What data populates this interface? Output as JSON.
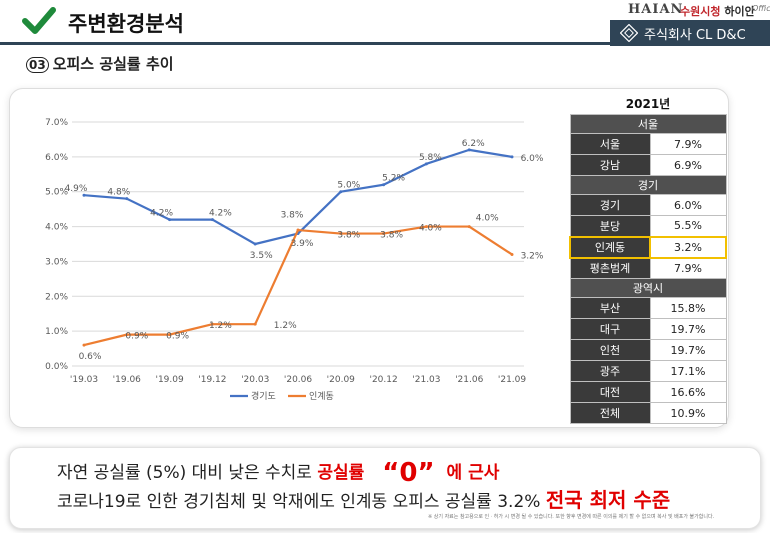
{
  "header": {
    "title": "주변환경분석",
    "brand_logo": "HAIAN",
    "brand_prefix": "수원시청",
    "brand_name": "하이안",
    "brand_office": "Office",
    "company": "주식회사 CL D&C"
  },
  "section": {
    "number": "03",
    "title": "오피스 공실률 추이"
  },
  "chart_data": {
    "type": "line",
    "categories": [
      "'19.03",
      "'19.06",
      "'19.09",
      "'19.12",
      "'20.03",
      "'20.06",
      "'20.09",
      "'20.12",
      "'21.03",
      "'21.06",
      "'21.09"
    ],
    "series": [
      {
        "name": "경기도",
        "color": "#4472c4",
        "values": [
          4.9,
          4.8,
          4.2,
          4.2,
          3.5,
          3.8,
          5.0,
          5.2,
          5.8,
          6.2,
          6.0
        ],
        "labels": [
          "4.9%",
          "4.8%",
          "4.2%",
          "4.2%",
          "3.5%",
          "3.8%",
          "5.0%",
          "5.2%",
          "5.8%",
          "6.2%",
          "6.0%"
        ]
      },
      {
        "name": "인계동",
        "color": "#ed7d31",
        "values": [
          0.6,
          0.9,
          0.9,
          1.2,
          1.2,
          3.9,
          3.8,
          3.8,
          4.0,
          4.0,
          3.2
        ],
        "labels": [
          "0.6%",
          "0.9%",
          "0.9%",
          "1.2%",
          "1.2%",
          "3.9%",
          "3.8%",
          "3.8%",
          "4.0%",
          "4.0%",
          "3.2%"
        ]
      }
    ],
    "yticks": [
      "0.0%",
      "1.0%",
      "2.0%",
      "3.0%",
      "4.0%",
      "5.0%",
      "6.0%",
      "7.0%"
    ],
    "ylim": [
      0,
      7
    ],
    "grid": true,
    "legend_position": "bottom"
  },
  "table": {
    "year": "2021년",
    "groups": [
      {
        "name": "서울",
        "rows": [
          {
            "city": "서울",
            "value": "7.9%"
          },
          {
            "city": "강남",
            "value": "6.9%"
          }
        ]
      },
      {
        "name": "경기",
        "rows": [
          {
            "city": "경기",
            "value": "6.0%"
          },
          {
            "city": "분당",
            "value": "5.5%"
          },
          {
            "city": "인계동",
            "value": "3.2%"
          },
          {
            "city": "평촌범계",
            "value": "7.9%"
          }
        ]
      },
      {
        "name": "광역시",
        "rows": [
          {
            "city": "부산",
            "value": "15.8%"
          },
          {
            "city": "대구",
            "value": "19.7%"
          },
          {
            "city": "인천",
            "value": "19.7%"
          },
          {
            "city": "광주",
            "value": "17.1%"
          },
          {
            "city": "대전",
            "value": "16.6%"
          },
          {
            "city": "전체",
            "value": "10.9%"
          }
        ]
      }
    ],
    "highlight_city": "인계동",
    "highlight_color": "#f2c000"
  },
  "summary": {
    "line1_pre": "자연 공실률 (5%) 대비 낮은 수치로 ",
    "line1_red": "공실률",
    "line1_zero": "“0”",
    "line1_post": "에 근사",
    "line2_pre": "코로나19로 인한 경기침체 및 악재에도 인계동 오피스 공실률 3.2% ",
    "line2_red": "전국 최저 수준",
    "note": "※ 상기 자료는 참고용으로 인ㆍ허가 시 변경 될 수 있습니다. 또한 향후 변경에 따른 이의를 제기 할 수 없으며 복사 및 배포가 불가합니다."
  }
}
